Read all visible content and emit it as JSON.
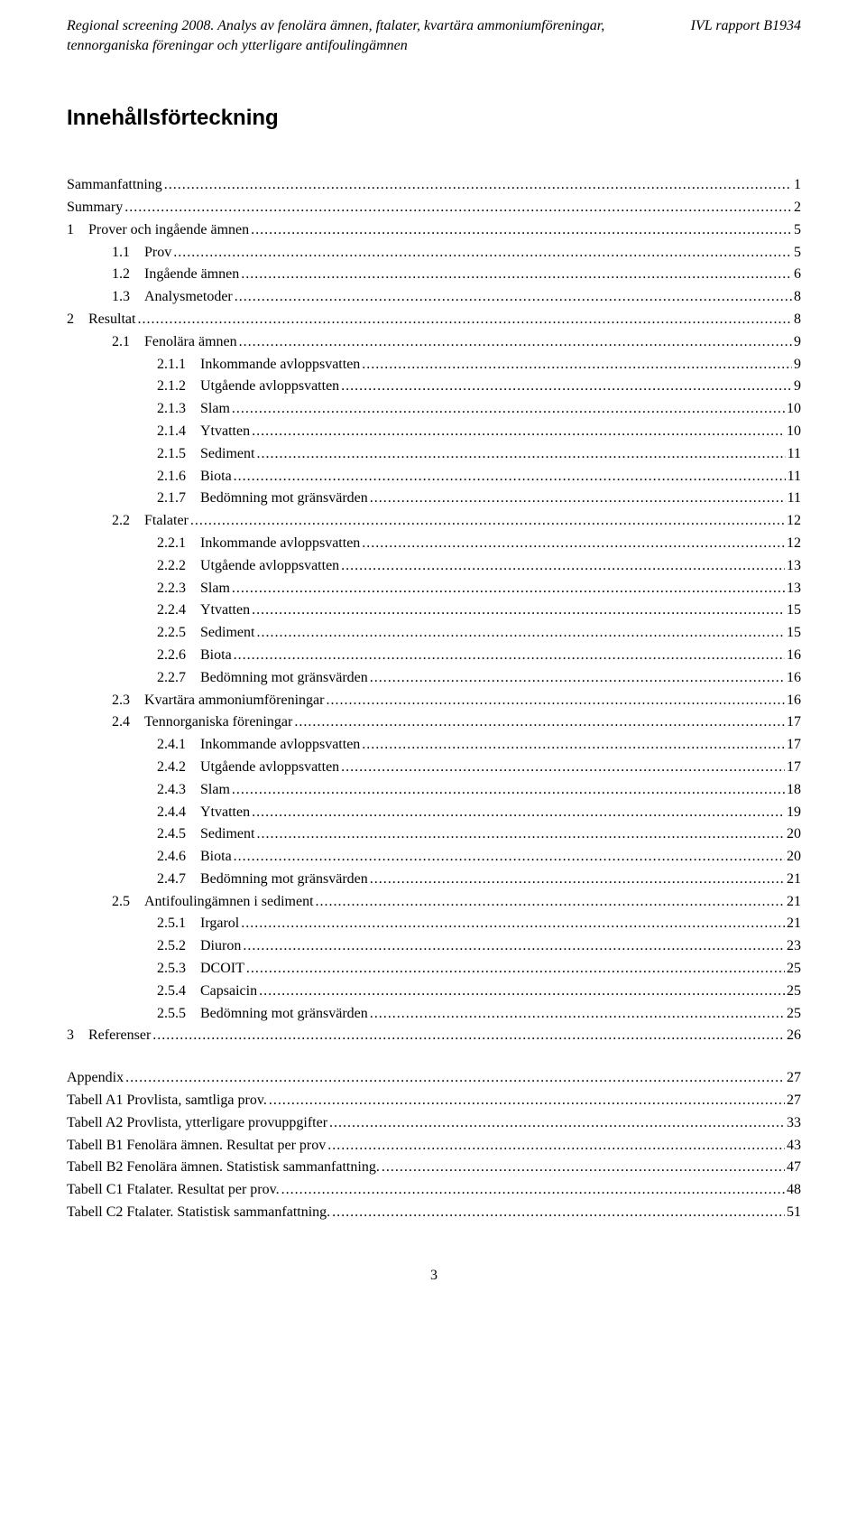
{
  "header": {
    "left_line1": "Regional screening 2008. Analys av fenolära ämnen, ftalater, kvartära ammoniumföreningar,",
    "left_line2": "tennorganiska föreningar och ytterligare antifoulingämnen",
    "right": "IVL rapport B1934"
  },
  "title": "Innehållsförteckning",
  "toc": [
    {
      "indent": 1,
      "label": "Sammanfattning",
      "page": "1"
    },
    {
      "indent": 1,
      "label": "Summary",
      "page": "2"
    },
    {
      "indent": 1,
      "label": "1 Prover och ingående ämnen",
      "page": "5"
    },
    {
      "indent": 2,
      "label": "1.1 Prov",
      "page": "5"
    },
    {
      "indent": 2,
      "label": "1.2 Ingående ämnen",
      "page": "6"
    },
    {
      "indent": 2,
      "label": "1.3 Analysmetoder",
      "page": "8"
    },
    {
      "indent": 1,
      "label": "2 Resultat",
      "page": "8"
    },
    {
      "indent": 2,
      "label": "2.1 Fenolära ämnen",
      "page": "9"
    },
    {
      "indent": 3,
      "label": "2.1.1 Inkommande avloppsvatten",
      "page": "9"
    },
    {
      "indent": 3,
      "label": "2.1.2 Utgående avloppsvatten",
      "page": "9"
    },
    {
      "indent": 3,
      "label": "2.1.3 Slam",
      "page": "10"
    },
    {
      "indent": 3,
      "label": "2.1.4 Ytvatten",
      "page": "10"
    },
    {
      "indent": 3,
      "label": "2.1.5 Sediment",
      "page": "11"
    },
    {
      "indent": 3,
      "label": "2.1.6 Biota",
      "page": "11"
    },
    {
      "indent": 3,
      "label": "2.1.7 Bedömning mot gränsvärden",
      "page": "11"
    },
    {
      "indent": 2,
      "label": "2.2 Ftalater",
      "page": "12"
    },
    {
      "indent": 3,
      "label": "2.2.1 Inkommande avloppsvatten",
      "page": "12"
    },
    {
      "indent": 3,
      "label": "2.2.2 Utgående avloppsvatten",
      "page": "13"
    },
    {
      "indent": 3,
      "label": "2.2.3 Slam",
      "page": "13"
    },
    {
      "indent": 3,
      "label": "2.2.4 Ytvatten",
      "page": "15"
    },
    {
      "indent": 3,
      "label": "2.2.5 Sediment",
      "page": "15"
    },
    {
      "indent": 3,
      "label": "2.2.6 Biota",
      "page": "16"
    },
    {
      "indent": 3,
      "label": "2.2.7 Bedömning mot gränsvärden",
      "page": "16"
    },
    {
      "indent": 2,
      "label": "2.3 Kvartära ammoniumföreningar",
      "page": "16"
    },
    {
      "indent": 2,
      "label": "2.4 Tennorganiska föreningar",
      "page": "17"
    },
    {
      "indent": 3,
      "label": "2.4.1 Inkommande avloppsvatten",
      "page": "17"
    },
    {
      "indent": 3,
      "label": "2.4.2 Utgående avloppsvatten",
      "page": "17"
    },
    {
      "indent": 3,
      "label": "2.4.3 Slam",
      "page": "18"
    },
    {
      "indent": 3,
      "label": "2.4.4 Ytvatten",
      "page": "19"
    },
    {
      "indent": 3,
      "label": "2.4.5 Sediment",
      "page": "20"
    },
    {
      "indent": 3,
      "label": "2.4.6 Biota",
      "page": "20"
    },
    {
      "indent": 3,
      "label": "2.4.7 Bedömning mot gränsvärden",
      "page": "21"
    },
    {
      "indent": 2,
      "label": "2.5 Antifoulingämnen i sediment",
      "page": "21"
    },
    {
      "indent": 3,
      "label": "2.5.1 Irgarol",
      "page": "21"
    },
    {
      "indent": 3,
      "label": "2.5.2 Diuron",
      "page": "23"
    },
    {
      "indent": 3,
      "label": "2.5.3 DCOIT",
      "page": "25"
    },
    {
      "indent": 3,
      "label": "2.5.4 Capsaicin",
      "page": "25"
    },
    {
      "indent": 3,
      "label": "2.5.5 Bedömning mot gränsvärden",
      "page": "25"
    },
    {
      "indent": 1,
      "label": "3 Referenser",
      "page": "26"
    }
  ],
  "toc2": [
    {
      "indent": 1,
      "label": "Appendix",
      "page": "27"
    },
    {
      "indent": 1,
      "label": "Tabell A1  Provlista, samtliga prov.",
      "page": "27"
    },
    {
      "indent": 1,
      "label": "Tabell A2 Provlista, ytterligare provuppgifter",
      "page": "33"
    },
    {
      "indent": 1,
      "label": "Tabell B1  Fenolära ämnen. Resultat per prov",
      "page": "43"
    },
    {
      "indent": 1,
      "label": "Tabell B2  Fenolära ämnen. Statistisk sammanfattning.",
      "page": "47"
    },
    {
      "indent": 1,
      "label": "Tabell C1  Ftalater. Resultat per prov.",
      "page": "48"
    },
    {
      "indent": 1,
      "label": "Tabell C2  Ftalater. Statistisk sammanfattning.",
      "page": "51"
    }
  ],
  "page_number": "3"
}
